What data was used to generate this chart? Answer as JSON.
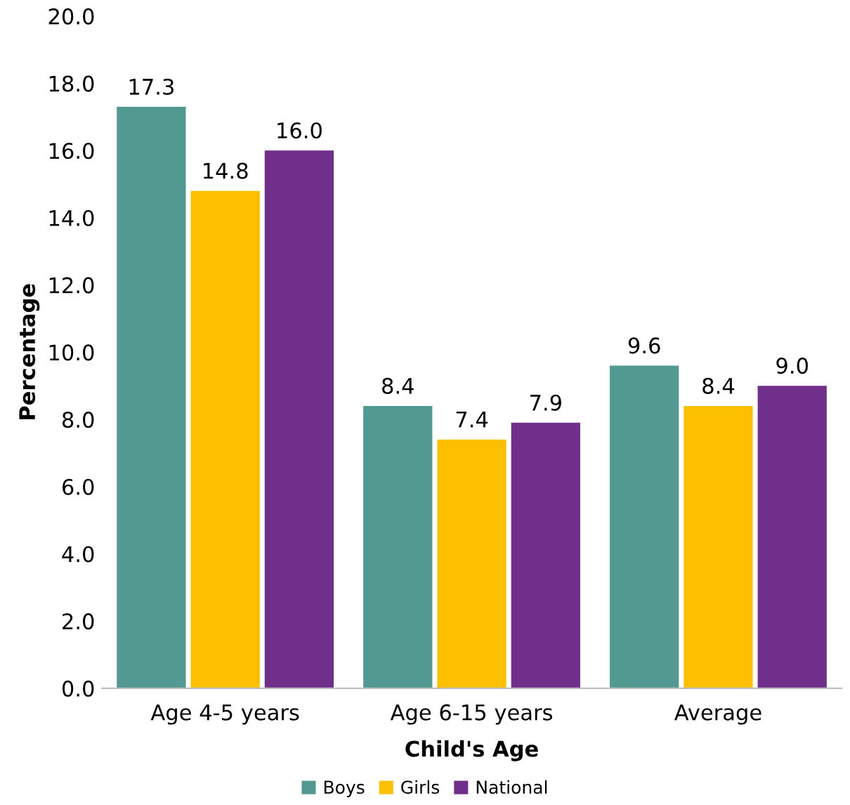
{
  "chart_data": {
    "type": "bar",
    "xlabel": "Child's Age",
    "ylabel": "Percentage",
    "categories": [
      "Age 4-5 years",
      "Age 6-15 years",
      "Average"
    ],
    "series": [
      {
        "name": "Boys",
        "color": "#529a91",
        "values": [
          17.3,
          8.4,
          9.6
        ],
        "value_labels": [
          "17.3",
          "8.4",
          "9.6"
        ]
      },
      {
        "name": "Girls",
        "color": "#fcc000",
        "values": [
          14.8,
          7.4,
          8.4
        ],
        "value_labels": [
          "14.8",
          "7.4",
          "8.4"
        ]
      },
      {
        "name": "National",
        "color": "#6f2f8a",
        "values": [
          16.0,
          7.9,
          9.0
        ],
        "value_labels": [
          "16.0",
          "7.9",
          "9.0"
        ]
      }
    ],
    "ylim": [
      0,
      20
    ],
    "yticks": [
      {
        "value": 0,
        "label": "0.0"
      },
      {
        "value": 2,
        "label": "2.0"
      },
      {
        "value": 4,
        "label": "4.0"
      },
      {
        "value": 6,
        "label": "6.0"
      },
      {
        "value": 8,
        "label": "8.0"
      },
      {
        "value": 10,
        "label": "10.0"
      },
      {
        "value": 12,
        "label": "12.0"
      },
      {
        "value": 14,
        "label": "14.0"
      },
      {
        "value": 16,
        "label": "16.0"
      },
      {
        "value": 18,
        "label": "18.0"
      },
      {
        "value": 20,
        "label": "20.0"
      }
    ],
    "grid": false,
    "legend": "bottom"
  }
}
